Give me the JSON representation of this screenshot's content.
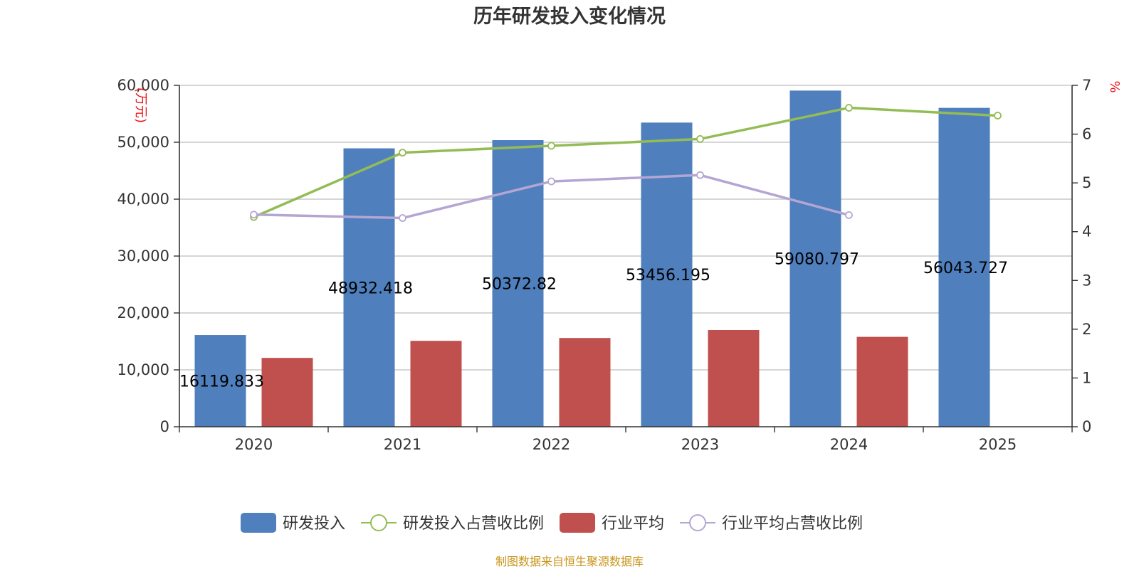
{
  "chart_data": {
    "type": "bar",
    "title": "历年研发投入变化情况",
    "categories": [
      "2020",
      "2021",
      "2022",
      "2023",
      "2024",
      "2025"
    ],
    "left_axis": {
      "unit": "(万元)",
      "ylim": [
        0,
        60000
      ],
      "ticks": [
        "0",
        "10,000",
        "20,000",
        "30,000",
        "40,000",
        "50,000",
        "60,000"
      ]
    },
    "right_axis": {
      "unit": "%",
      "ylim": [
        0,
        7
      ],
      "ticks": [
        "0",
        "1",
        "2",
        "3",
        "4",
        "5",
        "6",
        "7"
      ]
    },
    "series": [
      {
        "name": "研发投入",
        "type": "bar",
        "axis": "left",
        "color": "#4f7fbd",
        "values": [
          16119.833,
          48932.418,
          50372.82,
          53456.195,
          59080.797,
          56043.727
        ],
        "labels": [
          "16119.833",
          "48932.418",
          "50372.82",
          "53456.195",
          "59080.797",
          "56043.727"
        ]
      },
      {
        "name": "研发投入占营收比例",
        "type": "line",
        "axis": "right",
        "color": "#94bc55",
        "values": [
          4.3,
          5.62,
          5.76,
          5.9,
          6.54,
          6.38
        ]
      },
      {
        "name": "行业平均",
        "type": "bar",
        "axis": "left",
        "color": "#c0504d",
        "values": [
          12100,
          15100,
          15600,
          17000,
          15800,
          null
        ]
      },
      {
        "name": "行业平均占营收比例",
        "type": "line",
        "axis": "right",
        "color": "#b3a6d2",
        "values": [
          4.35,
          4.28,
          5.03,
          5.16,
          4.34,
          null
        ]
      }
    ]
  },
  "footer": {
    "source": "制图数据来自恒生聚源数据库"
  }
}
